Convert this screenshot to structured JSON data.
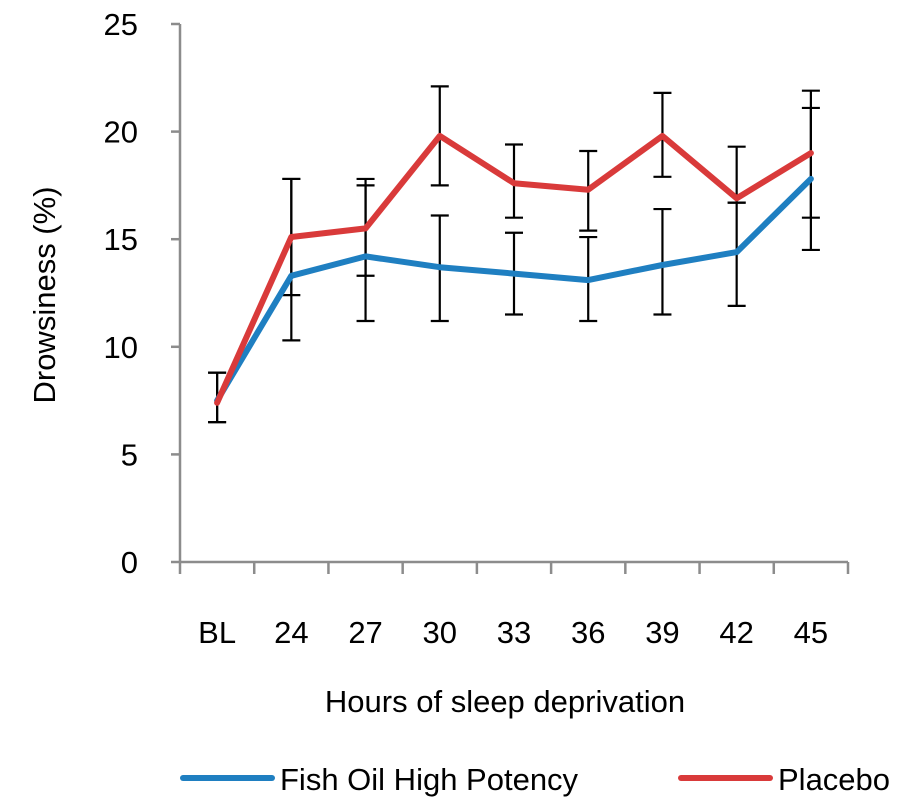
{
  "chart_data": {
    "type": "line",
    "xlabel": "Hours of sleep deprivation",
    "ylabel": "Drowsiness (%)",
    "ylim": [
      0,
      25
    ],
    "yticks": [
      0,
      5,
      10,
      15,
      20,
      25
    ],
    "categories": [
      "BL",
      "24",
      "27",
      "30",
      "33",
      "36",
      "39",
      "42",
      "45"
    ],
    "grid": false,
    "legend_position": "bottom",
    "series": [
      {
        "name": "Fish Oil High Potency",
        "color": "#1f7fc1",
        "values": [
          7.5,
          13.3,
          14.2,
          13.7,
          13.4,
          13.1,
          13.8,
          14.4,
          17.8
        ],
        "err_upper": [
          8.8,
          17.8,
          17.5,
          16.1,
          15.3,
          15.1,
          16.4,
          16.7,
          21.1
        ],
        "err_lower": [
          6.5,
          10.3,
          11.2,
          11.2,
          11.5,
          11.2,
          11.5,
          11.9,
          14.5
        ]
      },
      {
        "name": "Placebo",
        "color": "#d93a3a",
        "values": [
          7.4,
          15.1,
          15.5,
          19.8,
          17.6,
          17.3,
          19.8,
          16.9,
          19.0
        ],
        "err_upper": [
          8.8,
          17.8,
          17.8,
          22.1,
          19.4,
          19.1,
          21.8,
          19.3,
          21.9
        ],
        "err_lower": [
          6.5,
          12.4,
          13.3,
          17.5,
          16.0,
          15.4,
          17.9,
          16.7,
          16.0
        ]
      }
    ]
  }
}
